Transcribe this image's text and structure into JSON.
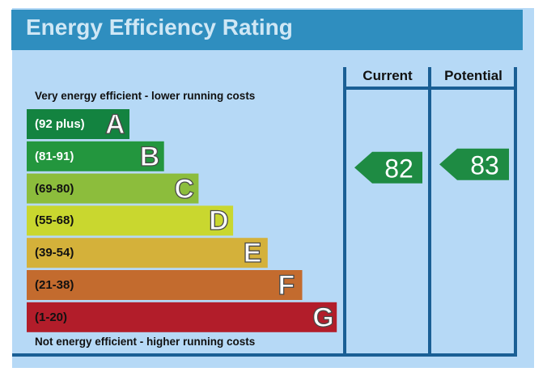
{
  "title": "Energy Efficiency Rating",
  "top_note": "Very energy efficient - lower running costs",
  "bottom_note": "Not energy efficient - higher running costs",
  "columns": {
    "current": "Current",
    "potential": "Potential"
  },
  "colors": {
    "panel": "#b6d9f6",
    "title_bar": "#2f8ebf",
    "grid": "#1a5f95",
    "arrow": "#1e8b43"
  },
  "chart_data": {
    "type": "bar",
    "categories": [
      "A",
      "B",
      "C",
      "D",
      "E",
      "F",
      "G"
    ],
    "ranges": [
      "(92 plus)",
      "(81-91)",
      "(69-80)",
      "(55-68)",
      "(39-54)",
      "(21-38)",
      "(1-20)"
    ],
    "band_colors": [
      "#138340",
      "#23963e",
      "#8cbd3c",
      "#c9d72f",
      "#d4b13a",
      "#c36b2e",
      "#b21d2a"
    ],
    "current": 82,
    "potential": 83
  }
}
